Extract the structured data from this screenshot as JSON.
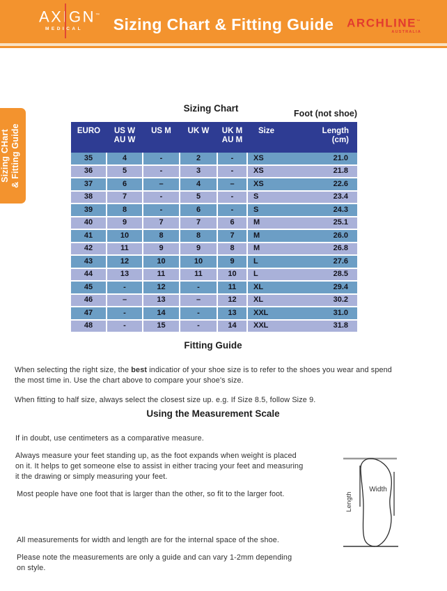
{
  "header": {
    "brand_left": {
      "name": "AXIGN",
      "tm": "™",
      "sub": "MEDICAL"
    },
    "title": "Sizing Chart & Fitting Guide",
    "brand_right": {
      "name": "ARCHLINE",
      "tm": "™",
      "sub": "AUSTRALIA"
    }
  },
  "side_tab": {
    "text": "Sizing CHart\n& Fitting Guide"
  },
  "sizing_chart": {
    "title": "Sizing Chart",
    "foot_label": "Foot (not shoe)",
    "columns": [
      "EURO",
      "US W\nAU W",
      "US M",
      "UK W",
      "UK M\nAU M",
      "Size",
      "Length\n(cm)"
    ],
    "rows": [
      [
        "35",
        "4",
        "-",
        "2",
        "-",
        "XS",
        "21.0"
      ],
      [
        "36",
        "5",
        "-",
        "3",
        "-",
        "XS",
        "21.8"
      ],
      [
        "37",
        "6",
        "–",
        "4",
        "–",
        "XS",
        "22.6"
      ],
      [
        "38",
        "7",
        "-",
        "5",
        "-",
        "S",
        "23.4"
      ],
      [
        "39",
        "8",
        "-",
        "6",
        "-",
        "S",
        "24.3"
      ],
      [
        "40",
        "9",
        "7",
        "7",
        "6",
        "M",
        "25.1"
      ],
      [
        "41",
        "10",
        "8",
        "8",
        "7",
        "M",
        "26.0"
      ],
      [
        "42",
        "11",
        "9",
        "9",
        "8",
        "M",
        "26.8"
      ],
      [
        "43",
        "12",
        "10",
        "10",
        "9",
        "L",
        "27.6"
      ],
      [
        "44",
        "13",
        "11",
        "11",
        "10",
        "L",
        "28.5"
      ],
      [
        "45",
        "-",
        "12",
        "-",
        "11",
        "XL",
        "29.4"
      ],
      [
        "46",
        "–",
        "13",
        "–",
        "12",
        "XL",
        "30.2"
      ],
      [
        "47",
        "-",
        "14",
        "-",
        "13",
        "XXL",
        "31.0"
      ],
      [
        "48",
        "-",
        "15",
        "-",
        "14",
        "XXL",
        "31.8"
      ]
    ]
  },
  "fitting_guide": {
    "heading": "Fitting Guide",
    "p1_before": "When selecting the right size, the ",
    "p1_bold": "best",
    "p1_after": " indicatior of your shoe size is to refer to the shoes you wear and spend\nthe most time in. Use the chart above to compare your shoe's size.",
    "p2": "When fitting to half size, always select the closest size up. e.g. If Size 8.5, follow Size 9."
  },
  "measurement_scale": {
    "heading": "Using the Measurement Scale",
    "p1": "If in doubt, use centimeters as a comparative measure.",
    "p2": "Always measure your feet standing up, as the foot expands when weight is placed\non it. It helps to get someone else to assist in either tracing your feet and measuring\nit the drawing or simply measuring your feet.",
    "p3": "Most people have one foot that is larger than the other, so fit to the larger foot.",
    "p4": "All measurements for width and length are for the internal space of the shoe.",
    "p5": "Please note the measurements are only a guide and can vary 1-2mm depending\non style.",
    "diagram": {
      "width_label": "Width",
      "length_label": "Length"
    }
  },
  "colors": {
    "brand_orange": "#F3932E",
    "brand_red": "#E23B2E",
    "table_header_navy": "#2E3C93",
    "row_teal": "#6C9EC5",
    "row_periwinkle": "#A9B1D9"
  }
}
